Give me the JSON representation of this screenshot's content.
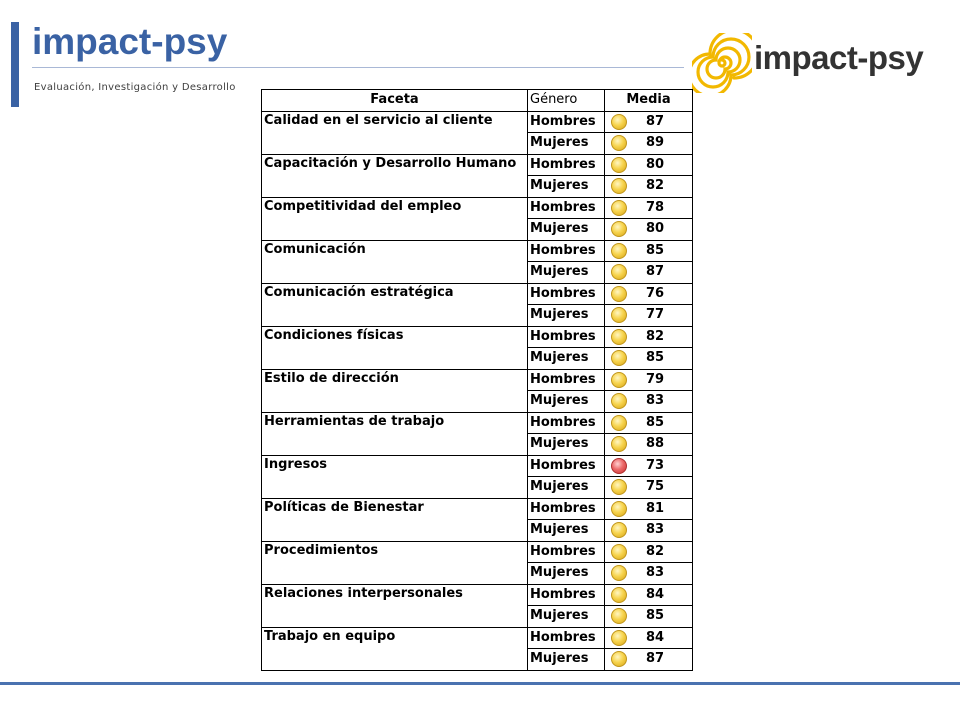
{
  "header": {
    "title": "impact-psy",
    "subtitle": "Evaluación, Investigación y Desarrollo",
    "logo_text": "impact-psy",
    "accent_color": "#3a62a4"
  },
  "table": {
    "headers": [
      "Faceta",
      "Género",
      "Media"
    ],
    "status_colors": {
      "yellow": "#f7d44e",
      "red": "#ec6a6a"
    },
    "rows": [
      {
        "faceta": "Calidad en el servicio al cliente",
        "items": [
          {
            "genero": "Hombres",
            "media": "87",
            "status": "yellow"
          },
          {
            "genero": "Mujeres",
            "media": "89",
            "status": "yellow"
          }
        ]
      },
      {
        "faceta": "Capacitación y Desarrollo Humano",
        "items": [
          {
            "genero": "Hombres",
            "media": "80",
            "status": "yellow"
          },
          {
            "genero": "Mujeres",
            "media": "82",
            "status": "yellow"
          }
        ]
      },
      {
        "faceta": "Competitividad del empleo",
        "items": [
          {
            "genero": "Hombres",
            "media": "78",
            "status": "yellow"
          },
          {
            "genero": "Mujeres",
            "media": "80",
            "status": "yellow"
          }
        ]
      },
      {
        "faceta": "Comunicación",
        "items": [
          {
            "genero": "Hombres",
            "media": "85",
            "status": "yellow"
          },
          {
            "genero": "Mujeres",
            "media": "87",
            "status": "yellow"
          }
        ]
      },
      {
        "faceta": "Comunicación estratégica",
        "items": [
          {
            "genero": "Hombres",
            "media": "76",
            "status": "yellow"
          },
          {
            "genero": "Mujeres",
            "media": "77",
            "status": "yellow"
          }
        ]
      },
      {
        "faceta": "Condiciones físicas",
        "items": [
          {
            "genero": "Hombres",
            "media": "82",
            "status": "yellow"
          },
          {
            "genero": "Mujeres",
            "media": "85",
            "status": "yellow"
          }
        ]
      },
      {
        "faceta": "Estilo de dirección",
        "items": [
          {
            "genero": "Hombres",
            "media": "79",
            "status": "yellow"
          },
          {
            "genero": "Mujeres",
            "media": "83",
            "status": "yellow"
          }
        ]
      },
      {
        "faceta": "Herramientas de trabajo",
        "items": [
          {
            "genero": "Hombres",
            "media": "85",
            "status": "yellow"
          },
          {
            "genero": "Mujeres",
            "media": "88",
            "status": "yellow"
          }
        ]
      },
      {
        "faceta": "Ingresos",
        "items": [
          {
            "genero": "Hombres",
            "media": "73",
            "status": "red"
          },
          {
            "genero": "Mujeres",
            "media": "75",
            "status": "yellow"
          }
        ]
      },
      {
        "faceta": "Políticas de Bienestar",
        "items": [
          {
            "genero": "Hombres",
            "media": "81",
            "status": "yellow"
          },
          {
            "genero": "Mujeres",
            "media": "83",
            "status": "yellow"
          }
        ]
      },
      {
        "faceta": "Procedimientos",
        "items": [
          {
            "genero": "Hombres",
            "media": "82",
            "status": "yellow"
          },
          {
            "genero": "Mujeres",
            "media": "83",
            "status": "yellow"
          }
        ]
      },
      {
        "faceta": "Relaciones interpersonales",
        "items": [
          {
            "genero": "Hombres",
            "media": "84",
            "status": "yellow"
          },
          {
            "genero": "Mujeres",
            "media": "85",
            "status": "yellow"
          }
        ]
      },
      {
        "faceta": "Trabajo en equipo",
        "items": [
          {
            "genero": "Hombres",
            "media": "84",
            "status": "yellow"
          },
          {
            "genero": "Mujeres",
            "media": "87",
            "status": "yellow"
          }
        ]
      }
    ]
  }
}
